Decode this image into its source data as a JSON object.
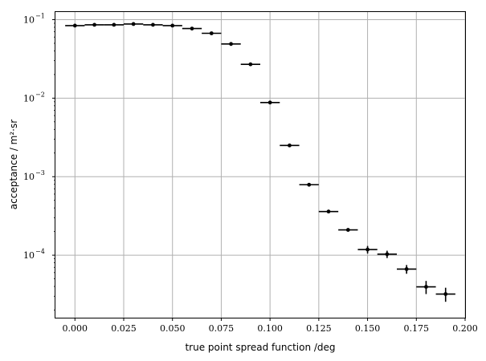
{
  "chart_data": {
    "type": "scatter",
    "xlabel": "true point spread function /deg",
    "ylabel": "acceptance / m²·sr",
    "xlim": [
      -0.01,
      0.2
    ],
    "ylim": [
      1.6e-05,
      0.125
    ],
    "xscale": "linear",
    "yscale": "log",
    "grid": true,
    "xticks": [
      0.0,
      0.025,
      0.05,
      0.075,
      0.1,
      0.125,
      0.15,
      0.175,
      0.2
    ],
    "xtick_labels": [
      "0.000",
      "0.025",
      "0.050",
      "0.075",
      "0.100",
      "0.125",
      "0.150",
      "0.175",
      "0.200"
    ],
    "yticks": [
      0.0001,
      0.001,
      0.01,
      0.1
    ],
    "ytick_labels": [
      {
        "base": "10",
        "exp": "−4"
      },
      {
        "base": "10",
        "exp": "−3"
      },
      {
        "base": "10",
        "exp": "−2"
      },
      {
        "base": "10",
        "exp": "−1"
      }
    ],
    "series": [
      {
        "color": "#000000",
        "x": [
          0.0,
          0.01,
          0.02,
          0.03,
          0.04,
          0.05,
          0.06,
          0.07,
          0.08,
          0.09,
          0.1,
          0.11,
          0.12,
          0.13,
          0.14,
          0.15,
          0.16,
          0.17,
          0.18,
          0.19
        ],
        "x_halfwidth": 0.005,
        "y": [
          0.084,
          0.086,
          0.086,
          0.088,
          0.086,
          0.084,
          0.077,
          0.067,
          0.049,
          0.027,
          0.0088,
          0.0025,
          0.00079,
          0.00036,
          0.00021,
          0.000118,
          0.000103,
          6.65e-05,
          3.95e-05,
          3.2e-05
        ],
        "y_err": [
          0.0006,
          0.0006,
          0.0006,
          0.0006,
          0.0006,
          0.0006,
          0.0005,
          0.0005,
          0.0004,
          0.0003,
          0.00012,
          5e-05,
          2e-05,
          1.2e-05,
          9e-06,
          1.3e-05,
          1.1e-05,
          8.5e-06,
          7.5e-06,
          6.5e-06
        ]
      }
    ]
  }
}
